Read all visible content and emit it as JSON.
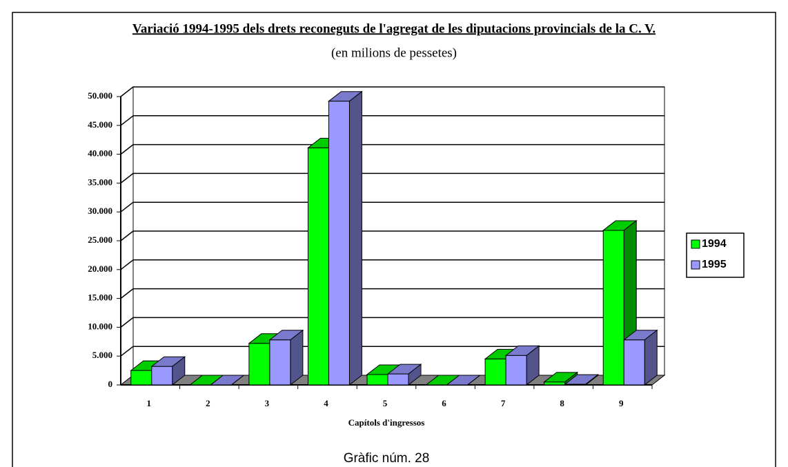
{
  "chart_data": {
    "type": "bar3d",
    "title": "Variació 1994-1995 dels drets reconeguts de l'agregat de les diputacions provincials de la C. V.",
    "subtitle": "(en milions de pessetes)",
    "x_label": "Capítols d'ingressos",
    "caption": "Gràfic núm. 28",
    "categories": [
      "1",
      "2",
      "3",
      "4",
      "5",
      "6",
      "7",
      "8",
      "9"
    ],
    "series": [
      {
        "name": "1994",
        "color": "#00ff00",
        "values": [
          2500,
          0,
          7200,
          41100,
          1800,
          0,
          4500,
          500,
          26800
        ]
      },
      {
        "name": "1995",
        "color": "#9999ff",
        "values": [
          3200,
          0,
          7800,
          49200,
          1900,
          0,
          5100,
          100,
          7800
        ]
      }
    ],
    "ylim": [
      0,
      50000
    ],
    "yticks": [
      0,
      {
        "value": 5000,
        "label": "5.000"
      },
      {
        "value": 10000,
        "label": "10.000"
      },
      {
        "value": 15000,
        "label": "15.000"
      },
      {
        "value": 20000,
        "label": "20.000"
      },
      {
        "value": 25000,
        "label": "25.000"
      },
      {
        "value": 30000,
        "label": "30.000"
      },
      {
        "value": 35000,
        "label": "35.000"
      },
      {
        "value": 40000,
        "label": "40.000"
      },
      {
        "value": 45000,
        "label": "45.000"
      },
      {
        "value": 50000,
        "label": "50.000"
      }
    ],
    "grid": true,
    "legend": "right"
  }
}
